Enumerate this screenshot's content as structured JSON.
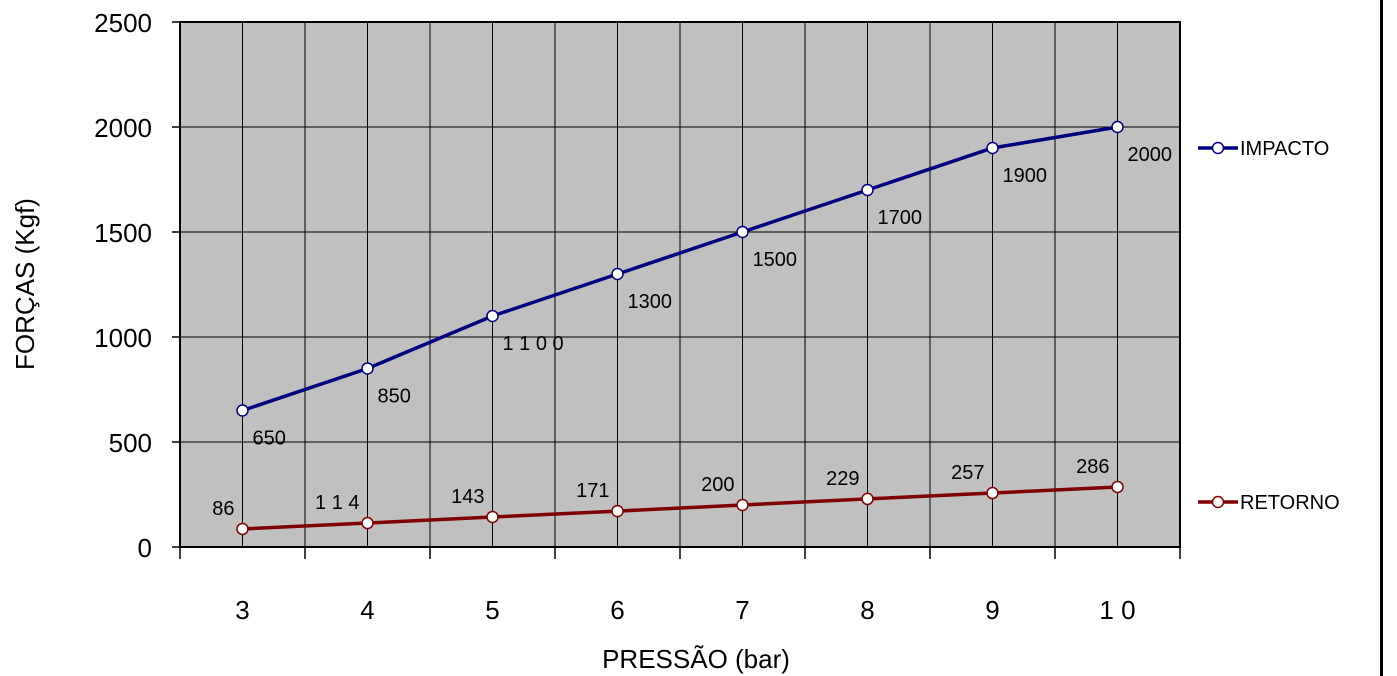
{
  "chart_data": {
    "type": "line",
    "title": "",
    "xlabel": "PRESSÃO (bar)",
    "ylabel": "FORÇAS (Kgf)",
    "x": [
      "3",
      "4",
      "5",
      "6",
      "7",
      "8",
      "9",
      "10"
    ],
    "xtick_labels": [
      "3",
      "4",
      "5",
      "6",
      "7",
      "8",
      "9",
      "1 0"
    ],
    "yticks": [
      "0",
      "500",
      "1000",
      "1500",
      "2000",
      "2500"
    ],
    "ylim": [
      0,
      2500
    ],
    "grid": true,
    "legend_position": "right",
    "plot_background": "#c0c0c0",
    "series": [
      {
        "name": "IMPACTO",
        "color": "#000080",
        "values": [
          650,
          850,
          1100,
          1300,
          1500,
          1700,
          1900,
          2000
        ],
        "labels": [
          "650",
          "850",
          "1 1 0 0",
          "1300",
          "1500",
          "1700",
          "1900",
          "2000"
        ]
      },
      {
        "name": "RETORNO",
        "color": "#800000",
        "values": [
          86,
          114,
          143,
          171,
          200,
          229,
          257,
          286
        ],
        "labels": [
          "86",
          "1 1 4",
          "143",
          "171",
          "200",
          "229",
          "257",
          "286"
        ]
      }
    ]
  }
}
